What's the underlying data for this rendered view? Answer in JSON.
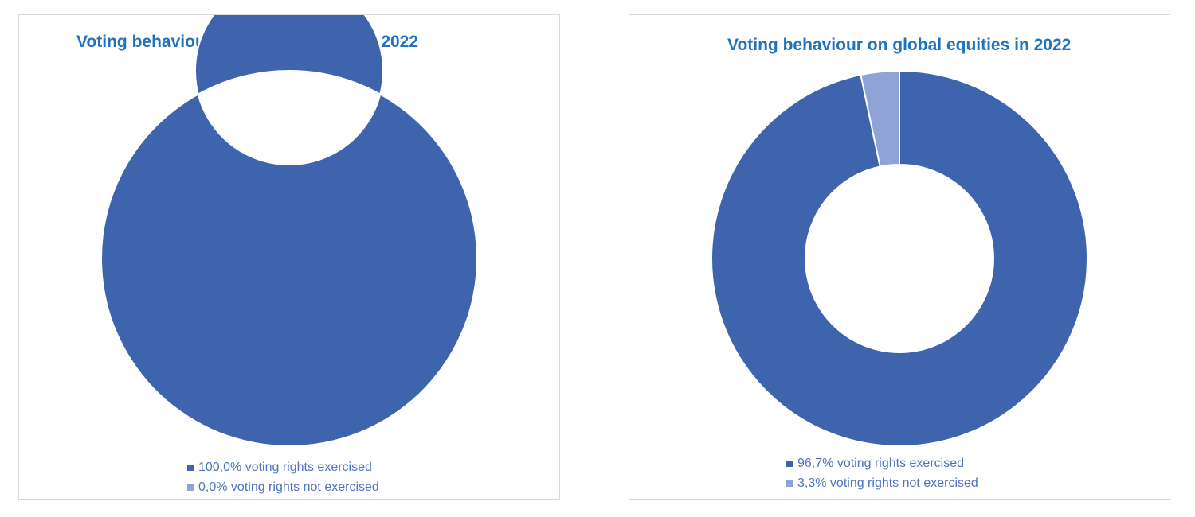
{
  "chart_data": [
    {
      "type": "pie",
      "variant": "donut",
      "title": "Voting behaviour on Swiss equities in 2022",
      "categories": [
        "voting rights exercised",
        "voting rights not exercised"
      ],
      "values": [
        100.0,
        0.0
      ],
      "colors": [
        "#3d64ad",
        "#8fa3d6"
      ],
      "legend": {
        "position": "bottom",
        "entries": [
          "100,0% voting rights exercised",
          "0,0% voting rights not exercised"
        ]
      }
    },
    {
      "type": "pie",
      "variant": "donut",
      "title": "Voting behaviour on global equities in 2022",
      "categories": [
        "voting rights exercised",
        "voting rights not exercised"
      ],
      "values": [
        96.7,
        3.3
      ],
      "colors": [
        "#3d64ad",
        "#8fa3d6"
      ],
      "legend": {
        "position": "bottom",
        "entries": [
          "96,7% voting rights exercised",
          "3,3% voting rights not exercised"
        ]
      }
    }
  ]
}
